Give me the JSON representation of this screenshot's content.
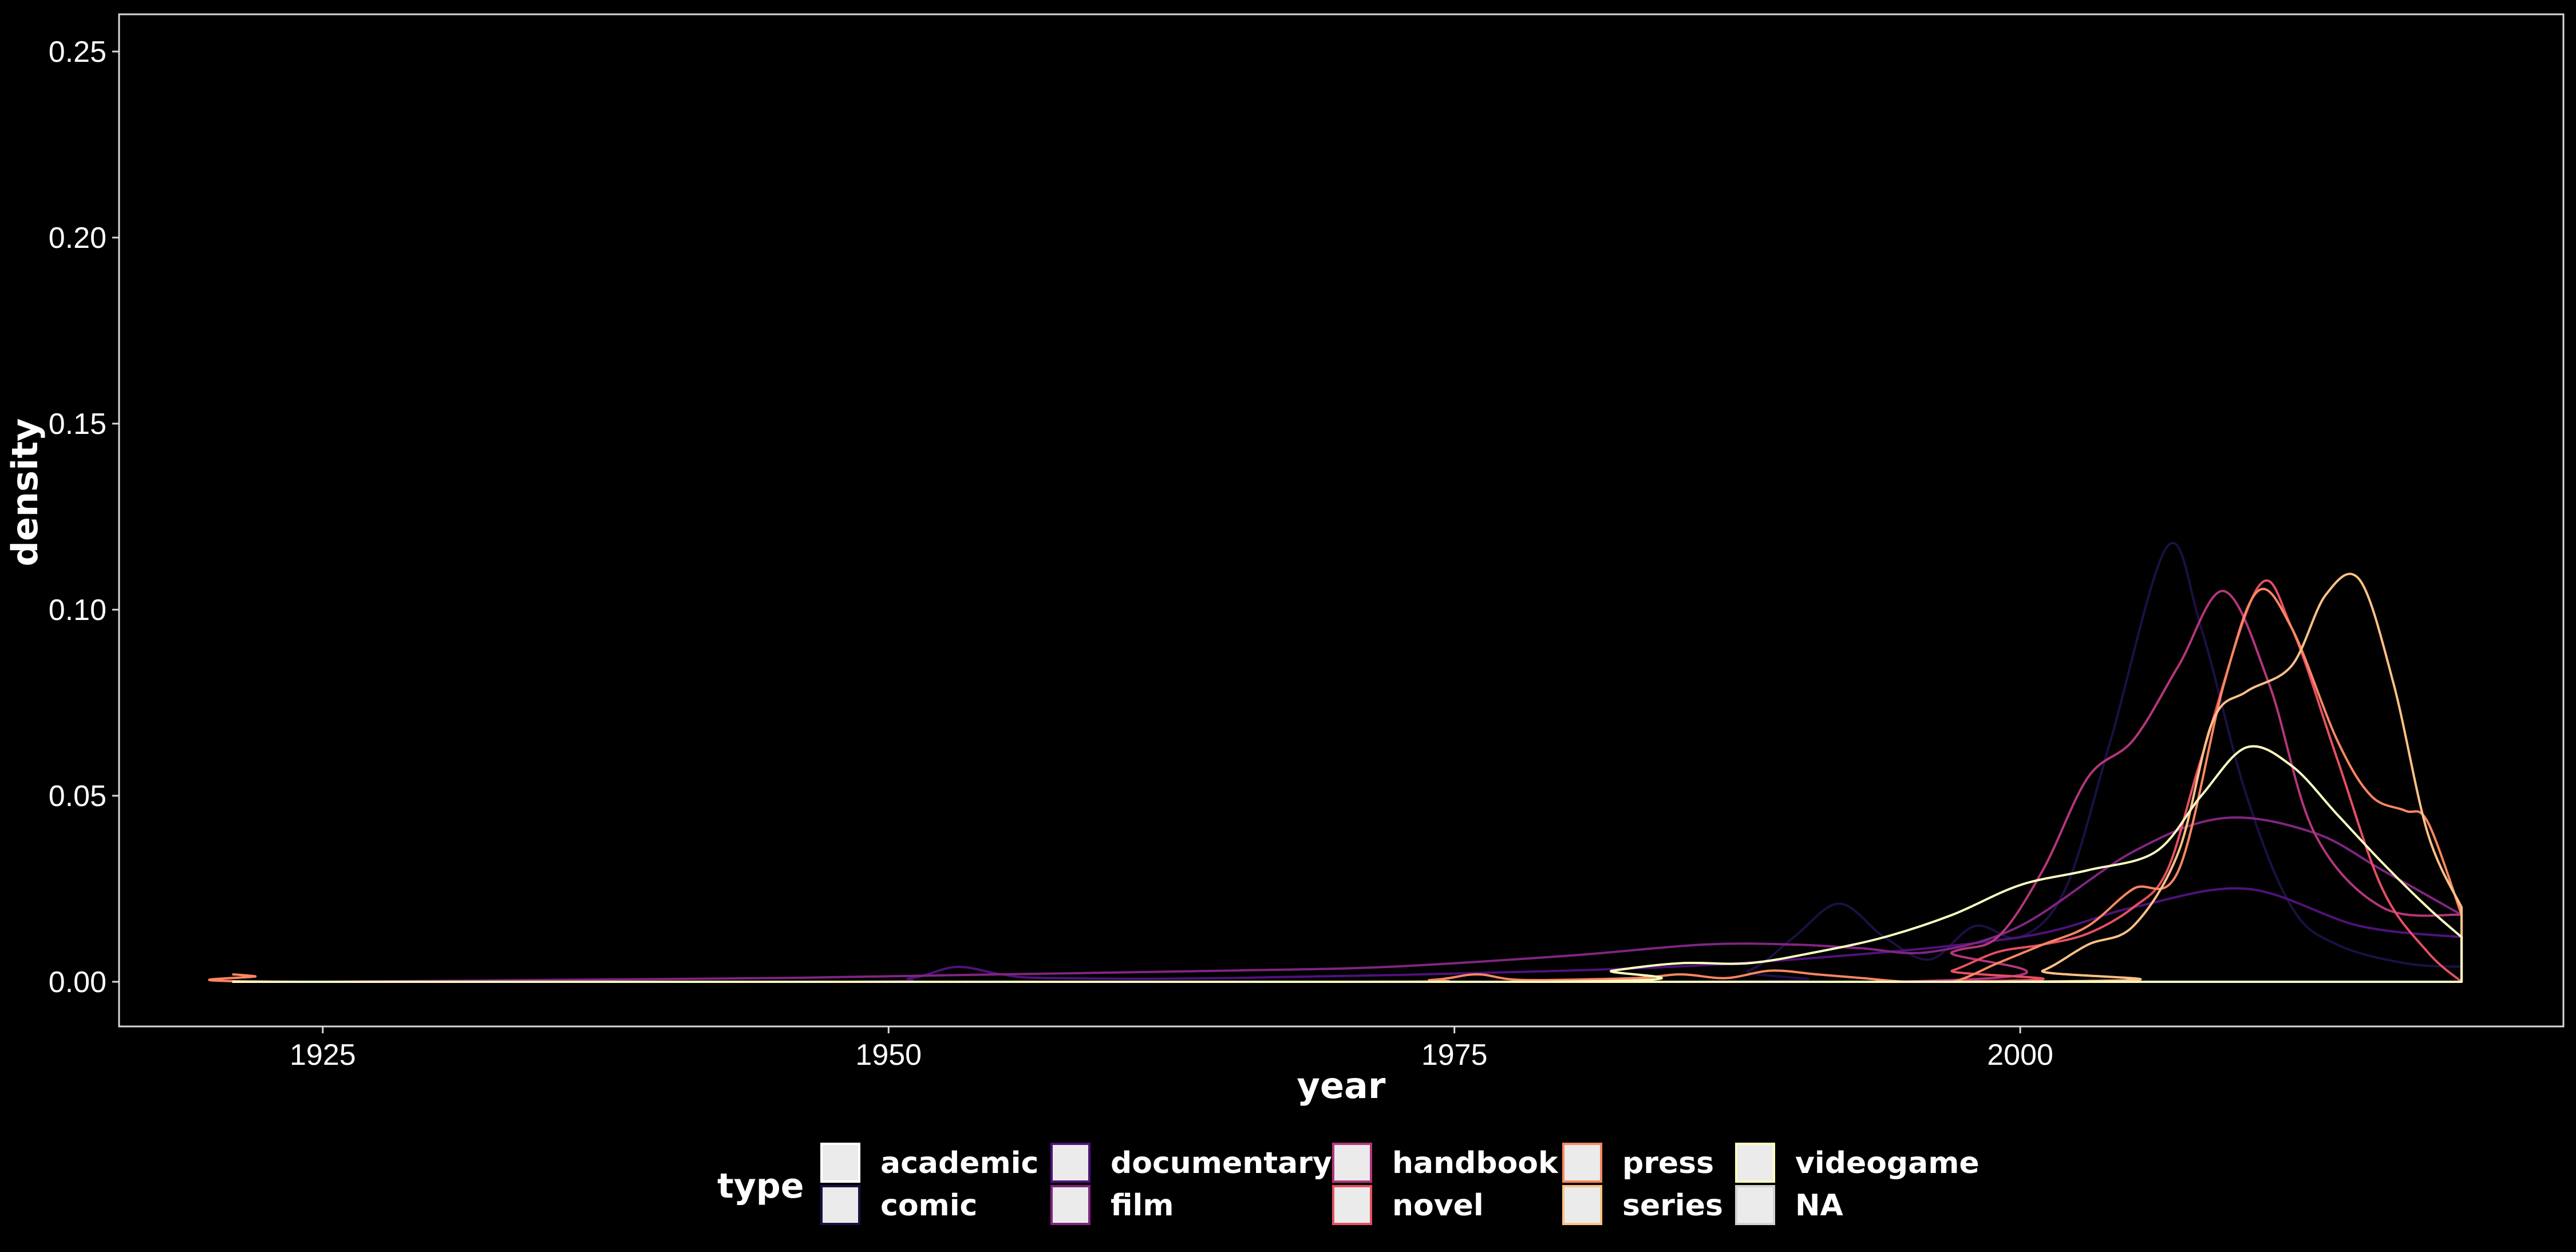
{
  "chart_data": {
    "type": "line",
    "title": "",
    "xlabel": "year",
    "ylabel": "density",
    "xlim": [
      1916,
      2024
    ],
    "ylim": [
      -0.012,
      0.26
    ],
    "x_ticks": [
      1925,
      1950,
      1975,
      2000
    ],
    "x_tick_labels": [
      "1925",
      "1950",
      "1975",
      "2000"
    ],
    "y_ticks": [
      0.0,
      0.05,
      0.1,
      0.15,
      0.2,
      0.25
    ],
    "y_tick_labels": [
      "0.00",
      "0.05",
      "0.10",
      "0.15",
      "0.20",
      "0.25"
    ],
    "grid": false,
    "legend": {
      "title": "type",
      "position": "bottom",
      "entries": [
        {
          "label": "academic",
          "color": "#ffffff"
        },
        {
          "label": "comic",
          "color": "#1c1044"
        },
        {
          "label": "documentary",
          "color": "#4f127b"
        },
        {
          "label": "film",
          "color": "#812581"
        },
        {
          "label": "handbook",
          "color": "#b5367a"
        },
        {
          "label": "novel",
          "color": "#e55064"
        },
        {
          "label": "press",
          "color": "#fb8761"
        },
        {
          "label": "series",
          "color": "#fec287"
        },
        {
          "label": "videogame",
          "color": "#fcfdbf"
        },
        {
          "label": "NA",
          "color": "#d3d3d3"
        }
      ]
    },
    "series": [
      {
        "name": "comic",
        "color": "#1c1044",
        "width": 4,
        "x": [
          1921,
          1985,
          1988,
          1990,
          1992,
          1994,
          1996,
          1998,
          2000,
          2002,
          2004,
          2006.5,
          2008,
          2010,
          2012,
          2014,
          2017,
          2019.5
        ],
        "y": [
          0,
          0,
          0.003,
          0.012,
          0.021,
          0.012,
          0.006,
          0.015,
          0.012,
          0.025,
          0.065,
          0.117,
          0.095,
          0.05,
          0.02,
          0.01,
          0.005,
          0.004
        ]
      },
      {
        "name": "documentary",
        "color": "#4f127b",
        "width": 4,
        "x": [
          1921,
          1948,
          1951,
          1953,
          1955,
          1957,
          1965,
          1980,
          1990,
          2000,
          2005,
          2010,
          2015,
          2019.5
        ],
        "y": [
          0,
          0,
          0.001,
          0.004,
          0.002,
          0.001,
          0.001,
          0.003,
          0.006,
          0.012,
          0.02,
          0.025,
          0.015,
          0.012
        ]
      },
      {
        "name": "film",
        "color": "#812581",
        "width": 4,
        "x": [
          1921,
          1925,
          1935,
          1945,
          1955,
          1965,
          1972,
          1980,
          1986,
          1990,
          1993,
          1996,
          2000,
          2005,
          2009,
          2013,
          2016,
          2019.5
        ],
        "y": [
          0,
          0,
          0.0005,
          0.001,
          0.002,
          0.003,
          0.004,
          0.007,
          0.01,
          0.01,
          0.009,
          0.008,
          0.015,
          0.035,
          0.044,
          0.04,
          0.03,
          0.018
        ]
      },
      {
        "name": "handbook",
        "color": "#b5367a",
        "width": 4,
        "x": [
          1921,
          1994,
          1997,
          1999,
          2001,
          2003,
          2005,
          2007,
          2009,
          2011,
          2013,
          2016,
          2019.5
        ],
        "y": [
          0,
          0,
          0.008,
          0.012,
          0.03,
          0.055,
          0.065,
          0.085,
          0.105,
          0.08,
          0.04,
          0.02,
          0.018
        ]
      },
      {
        "name": "novel",
        "color": "#e55064",
        "width": 4,
        "x": [
          1921,
          1995,
          1997,
          1999,
          2001,
          2003,
          2005,
          2006.5,
          2008,
          2010.5,
          2012,
          2014,
          2016,
          2018,
          2019.5
        ],
        "y": [
          0,
          0,
          0.003,
          0.008,
          0.01,
          0.013,
          0.02,
          0.03,
          0.06,
          0.106,
          0.095,
          0.06,
          0.025,
          0.008,
          0.0
        ]
      },
      {
        "name": "press",
        "color": "#fb8761",
        "width": 4,
        "x": [
          1921,
          1922,
          1924,
          1970,
          1974,
          1976,
          1978,
          1983,
          1985,
          1987,
          1989,
          1991,
          1993,
          1995,
          1997,
          1999,
          2001,
          2003,
          2005,
          2007,
          2009,
          2010.5,
          2012,
          2014,
          2015.5,
          2017,
          2018,
          2019.5
        ],
        "y": [
          0.002,
          0.0015,
          0,
          0,
          0.0005,
          0.002,
          0.0005,
          0.001,
          0.002,
          0.001,
          0.003,
          0.002,
          0.001,
          0.0,
          0.0,
          0.005,
          0.01,
          0.015,
          0.025,
          0.03,
          0.08,
          0.105,
          0.095,
          0.065,
          0.05,
          0.046,
          0.043,
          0.018
        ]
      },
      {
        "name": "series",
        "color": "#fec287",
        "width": 4,
        "x": [
          1921,
          1999,
          2001,
          2003,
          2005,
          2007,
          2008.5,
          2010,
          2012,
          2013.5,
          2015,
          2016.5,
          2018,
          2019.5
        ],
        "y": [
          0,
          0,
          0.003,
          0.01,
          0.015,
          0.035,
          0.07,
          0.078,
          0.085,
          0.104,
          0.108,
          0.08,
          0.04,
          0.02
        ]
      },
      {
        "name": "videogame",
        "color": "#fcfdbf",
        "width": 4,
        "x": [
          1921,
          1979,
          1982,
          1985,
          1988,
          1991,
          1994,
          1997,
          2000,
          2003,
          2006,
          2008,
          2010,
          2012,
          2014,
          2016,
          2018,
          2019.5
        ],
        "y": [
          0,
          0,
          0.003,
          0.005,
          0.005,
          0.008,
          0.012,
          0.018,
          0.026,
          0.03,
          0.035,
          0.05,
          0.063,
          0.058,
          0.045,
          0.032,
          0.02,
          0.012
        ]
      }
    ]
  }
}
